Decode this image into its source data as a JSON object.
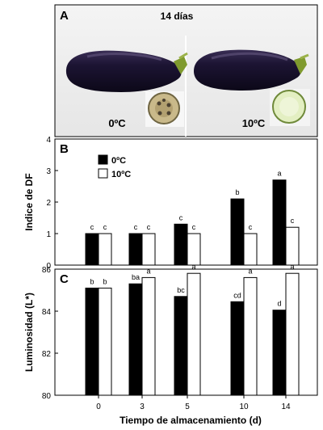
{
  "panel_a": {
    "letter": "A",
    "title": "14 días",
    "left_label": "0ºC",
    "right_label": "10ºC"
  },
  "shared": {
    "xlabel": "Tiempo de almacenamiento (d)"
  },
  "colors": {
    "series_0": "#000000",
    "series_10": "#ffffff",
    "eggplant": "#1a1330",
    "calyx": "#7f9a2e",
    "slice_0C": "#c9b98a",
    "slice_10C": "#e3efc2"
  },
  "chart_data": [
    {
      "type": "bar",
      "panel": "B",
      "categories": [
        "0",
        "3",
        "5",
        "10",
        "14"
      ],
      "series": [
        {
          "name": "0ºC",
          "values": [
            1.0,
            1.0,
            1.3,
            2.1,
            2.7
          ],
          "letters": [
            "c",
            "c",
            "c",
            "b",
            "a"
          ]
        },
        {
          "name": "10ºC",
          "values": [
            1.0,
            1.0,
            1.0,
            1.0,
            1.2
          ],
          "letters": [
            "c",
            "c",
            "c",
            "c",
            "c"
          ]
        }
      ],
      "ylabel": "Indice de DF",
      "ylim": [
        0,
        4
      ],
      "yticks": [
        "0",
        "1",
        "2",
        "3",
        "4"
      ],
      "legend": "top-left",
      "grid": false
    },
    {
      "type": "bar",
      "panel": "C",
      "categories": [
        "0",
        "3",
        "5",
        "10",
        "14"
      ],
      "series": [
        {
          "name": "0ºC",
          "values": [
            85.1,
            85.3,
            84.7,
            84.45,
            84.05
          ],
          "letters": [
            "b",
            "ba",
            "bc",
            "cd",
            "d"
          ]
        },
        {
          "name": "10ºC",
          "values": [
            85.1,
            85.6,
            85.8,
            85.6,
            85.8
          ],
          "letters": [
            "b",
            "a",
            "a",
            "a",
            "a"
          ]
        }
      ],
      "xlabel": "Tiempo de almacenamiento (d)",
      "ylabel": "Luminosidad (L*)",
      "ylim": [
        80,
        86
      ],
      "yticks": [
        "80",
        "82",
        "84",
        "86"
      ],
      "grid": false
    }
  ]
}
